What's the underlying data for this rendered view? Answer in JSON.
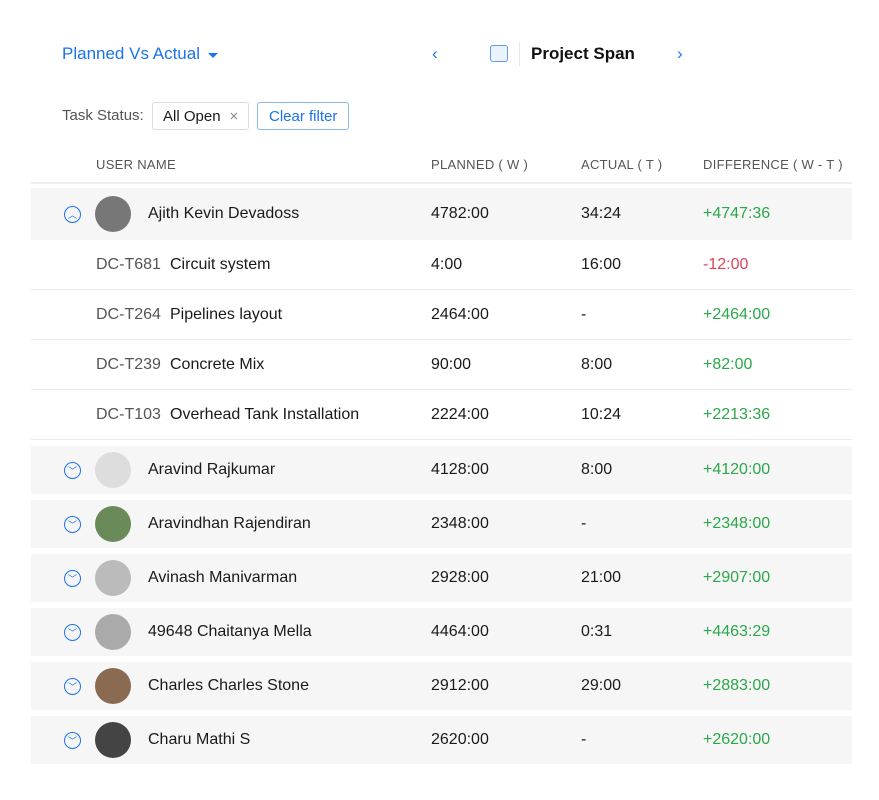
{
  "header": {
    "title": "Planned Vs Actual",
    "period": "Project Span",
    "prev": "‹",
    "next": "›"
  },
  "filter": {
    "label": "Task Status:",
    "chip": "All Open",
    "chip_remove": "×",
    "clear": "Clear filter"
  },
  "columns": [
    "USER NAME",
    "PLANNED ( W )",
    "ACTUAL ( T )",
    "DIFFERENCE ( W - T )"
  ],
  "users": [
    {
      "name": "Ajith Kevin Devadoss",
      "planned": "4782:00",
      "actual": "34:24",
      "diff": "+4747:36",
      "expanded": true,
      "tasks": [
        {
          "id": "DC-T681",
          "name": "Circuit system",
          "planned": "4:00",
          "actual": "16:00",
          "diff": "-12:00"
        },
        {
          "id": "DC-T264",
          "name": "Pipelines layout",
          "planned": "2464:00",
          "actual": "-",
          "diff": "+2464:00"
        },
        {
          "id": "DC-T239",
          "name": "Concrete Mix",
          "planned": "90:00",
          "actual": "8:00",
          "diff": "+82:00"
        },
        {
          "id": "DC-T103",
          "name": "Overhead Tank Installation",
          "planned": "2224:00",
          "actual": "10:24",
          "diff": "+2213:36"
        }
      ]
    },
    {
      "name": "Aravind Rajkumar",
      "planned": "4128:00",
      "actual": "8:00",
      "diff": "+4120:00"
    },
    {
      "name": "Aravindhan Rajendiran",
      "planned": "2348:00",
      "actual": "-",
      "diff": "+2348:00"
    },
    {
      "name": "Avinash Manivarman",
      "planned": "2928:00",
      "actual": "21:00",
      "diff": "+2907:00"
    },
    {
      "name": "49648 Chaitanya Mella",
      "planned": "4464:00",
      "actual": "0:31",
      "diff": "+4463:29"
    },
    {
      "name": "Charles Charles Stone",
      "planned": "2912:00",
      "actual": "29:00",
      "diff": "+2883:00"
    },
    {
      "name": "Charu Mathi S",
      "planned": "2620:00",
      "actual": "-",
      "diff": "+2620:00"
    }
  ],
  "colors": {
    "accent": "#1a73e8",
    "positive": "#2aa84a",
    "negative": "#e0435a"
  }
}
